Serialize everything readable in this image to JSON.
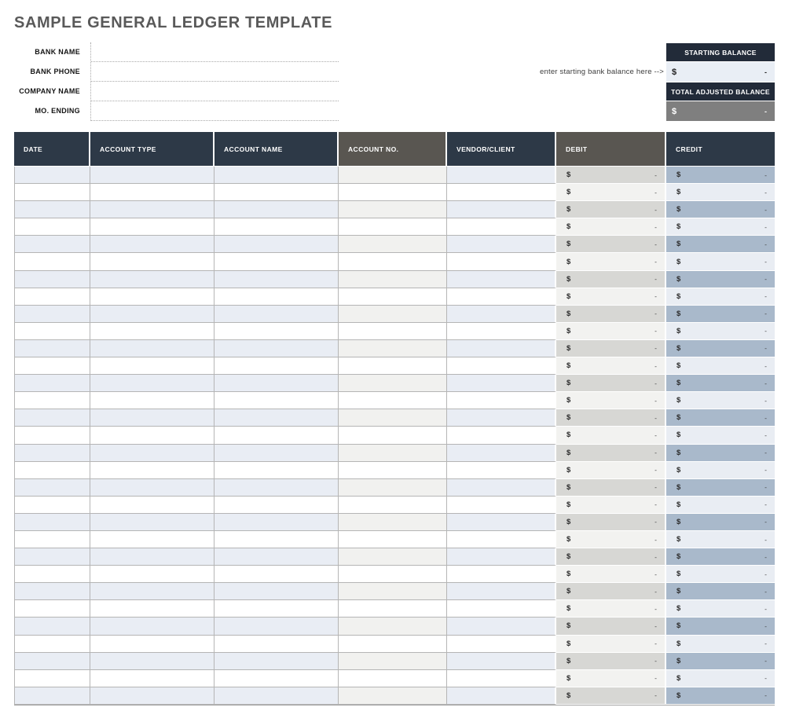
{
  "page": {
    "title": "SAMPLE GENERAL LEDGER TEMPLATE"
  },
  "form": {
    "fields": [
      {
        "label": "BANK NAME",
        "value": ""
      },
      {
        "label": "BANK PHONE",
        "value": ""
      },
      {
        "label": "COMPANY NAME",
        "value": ""
      },
      {
        "label": "MO. ENDING",
        "value": ""
      }
    ]
  },
  "balance_box": {
    "annotation": "enter starting bank balance here -->",
    "starting_balance": {
      "label": "STARTING BALANCE",
      "currency": "$",
      "value": "-"
    },
    "total_adjusted_balance": {
      "label": "TOTAL ADJUSTED BALANCE",
      "currency": "$",
      "value": "-"
    }
  },
  "ledger_table": {
    "columns": [
      {
        "label": "DATE",
        "type": "text",
        "header_style": "navy"
      },
      {
        "label": "ACCOUNT TYPE",
        "type": "text",
        "header_style": "navy"
      },
      {
        "label": "ACCOUNT NAME",
        "type": "text",
        "header_style": "navy"
      },
      {
        "label": "ACCOUNT NO.",
        "type": "text",
        "header_style": "gray"
      },
      {
        "label": "VENDOR/CLIENT",
        "type": "text",
        "header_style": "navy"
      },
      {
        "label": "DEBIT",
        "type": "currency",
        "header_style": "gray"
      },
      {
        "label": "CREDIT",
        "type": "currency",
        "header_style": "navy"
      }
    ],
    "row_count": 31,
    "currency_symbol": "$",
    "empty_value": "-"
  },
  "colors": {
    "title_gray": "#595959",
    "table_header_navy": "#2d3947",
    "table_header_gray": "#595651",
    "balance_header_navy": "#222b39",
    "row_shaded_blue": "#e9edf4",
    "account_no_shaded": "#f1f1ef",
    "debit_shaded": "#d7d7d4",
    "debit_light": "#f2f2f0",
    "credit_shaded": "#a9b9cb",
    "credit_light": "#e9edf3",
    "starting_balance_cell": "#e9eef5",
    "total_adjusted_cell_gray": "#7f7f7f"
  }
}
